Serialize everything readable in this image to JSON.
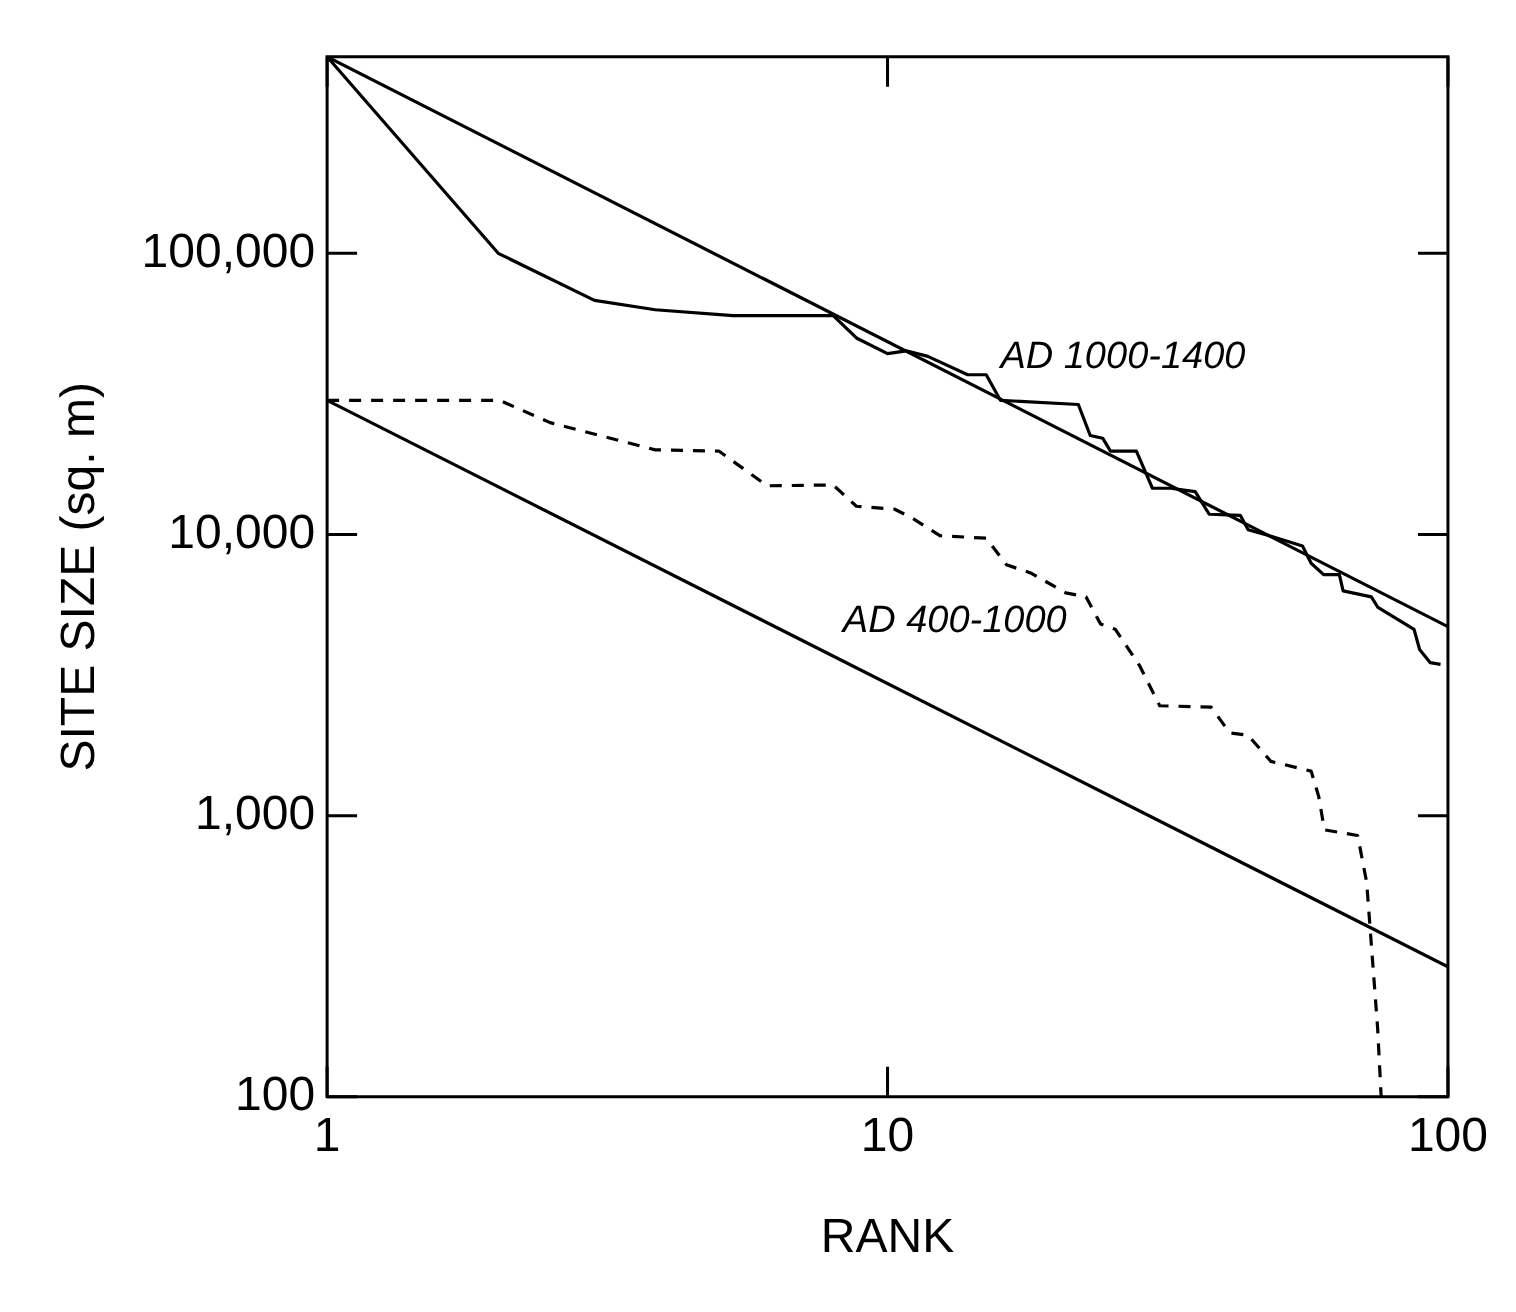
{
  "chart_data": {
    "type": "line",
    "xlabel": "RANK",
    "ylabel": "SITE SIZE (sq. m)",
    "log": "xy",
    "grid": false,
    "legend": false,
    "marker": "none",
    "xlim": [
      1,
      100
    ],
    "xticks": [
      1,
      10,
      100
    ],
    "ylim": [
      100,
      500000
    ],
    "yticks": [
      100,
      {
        "value": 1000,
        "label": "1,000"
      },
      {
        "value": 10000,
        "label": "10,000"
      },
      {
        "value": 100000,
        "label": "100,000"
      }
    ],
    "series": [
      {
        "name": "AD 1000-1400",
        "x": [
          1,
          100
        ],
        "values": [
          500000,
          4700
        ],
        "color": "#000000",
        "line_style": "solid"
      },
      {
        "name": "AD 400-1000",
        "x": [
          1,
          100
        ],
        "values": [
          30000,
          290
        ],
        "color": "#000000",
        "line_style": "solid"
      },
      {
        "x": [
          1,
          2.02,
          3,
          3.85,
          5.3,
          8,
          8.8,
          10,
          10.8,
          11.8,
          13.9,
          15,
          15.9,
          21.9,
          23,
          24.2,
          25,
          27.8,
          29.7,
          32,
          35.4,
          37.5,
          42.6,
          44,
          48,
          55,
          57,
          60,
          64,
          65,
          73,
          75,
          87,
          89,
          93,
          97
        ],
        "values": [
          500000,
          100000,
          68000,
          63000,
          60000,
          60000,
          50000,
          44000,
          45000,
          43000,
          37000,
          37000,
          30000,
          29000,
          22500,
          22000,
          19800,
          19800,
          14600,
          14600,
          14200,
          11800,
          11700,
          10400,
          9900,
          9100,
          7900,
          7200,
          7200,
          6300,
          6000,
          5500,
          4600,
          3900,
          3500,
          3450
        ],
        "color": "#000000",
        "line_style": "solid"
      },
      {
        "x": [
          1,
          2.03,
          2.5,
          3.85,
          5,
          6.1,
          8,
          8.8,
          10.3,
          11.1,
          12.4,
          15,
          16.3,
          18,
          20.8,
          22.6,
          24,
          25.5,
          28.2,
          30.6,
          37.8,
          40.8,
          44,
          48.3,
          57,
          58.8,
          60.2,
          69,
          71.6,
          74.9,
          76
        ],
        "values": [
          30000,
          30000,
          25000,
          20000,
          19800,
          14900,
          15000,
          12600,
          12300,
          11400,
          9900,
          9700,
          7800,
          7300,
          6200,
          6000,
          4800,
          4600,
          3400,
          2460,
          2430,
          1970,
          1930,
          1560,
          1440,
          1170,
          890,
          850,
          580,
          176,
          100
        ],
        "color": "#000000",
        "line_style": "dashed"
      }
    ]
  }
}
